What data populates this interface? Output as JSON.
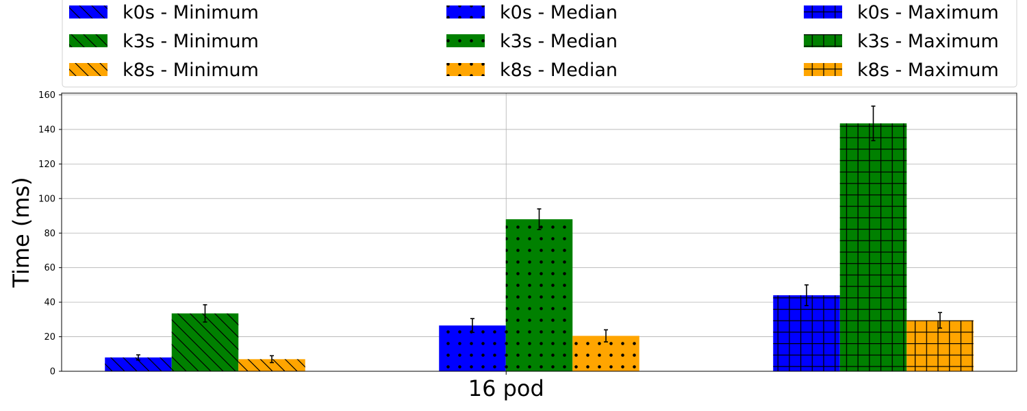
{
  "chart_data": {
    "type": "bar",
    "categories": [
      "16 pod"
    ],
    "ylabel": "Time (ms)",
    "xlabel": "",
    "ylim": [
      0,
      161
    ],
    "yticks": [
      0,
      20,
      40,
      60,
      80,
      100,
      120,
      140,
      160
    ],
    "grid": true,
    "legend_position": "top",
    "groups": [
      "Minimum",
      "Median",
      "Maximum"
    ],
    "series": [
      {
        "name": "k0s - Minimum",
        "group": "Minimum",
        "color": "#0000ff",
        "hatch": "diagonal",
        "value": 8,
        "error": 1.5
      },
      {
        "name": "k3s - Minimum",
        "group": "Minimum",
        "color": "#008000",
        "hatch": "diagonal",
        "value": 33.5,
        "error": 5
      },
      {
        "name": "k8s - Minimum",
        "group": "Minimum",
        "color": "#ffa500",
        "hatch": "diagonal",
        "value": 7,
        "error": 2
      },
      {
        "name": "k0s - Median",
        "group": "Median",
        "color": "#0000ff",
        "hatch": "dots",
        "value": 26.5,
        "error": 4
      },
      {
        "name": "k3s - Median",
        "group": "Median",
        "color": "#008000",
        "hatch": "dots",
        "value": 88,
        "error": 6
      },
      {
        "name": "k8s - Median",
        "group": "Median",
        "color": "#ffa500",
        "hatch": "dots",
        "value": 20.5,
        "error": 3.5
      },
      {
        "name": "k0s - Maximum",
        "group": "Maximum",
        "color": "#0000ff",
        "hatch": "grid",
        "value": 44,
        "error": 6
      },
      {
        "name": "k3s - Maximum",
        "group": "Maximum",
        "color": "#008000",
        "hatch": "grid",
        "value": 143.5,
        "error": 10
      },
      {
        "name": "k8s - Maximum",
        "group": "Maximum",
        "color": "#ffa500",
        "hatch": "grid",
        "value": 29.5,
        "error": 4.5
      }
    ]
  }
}
